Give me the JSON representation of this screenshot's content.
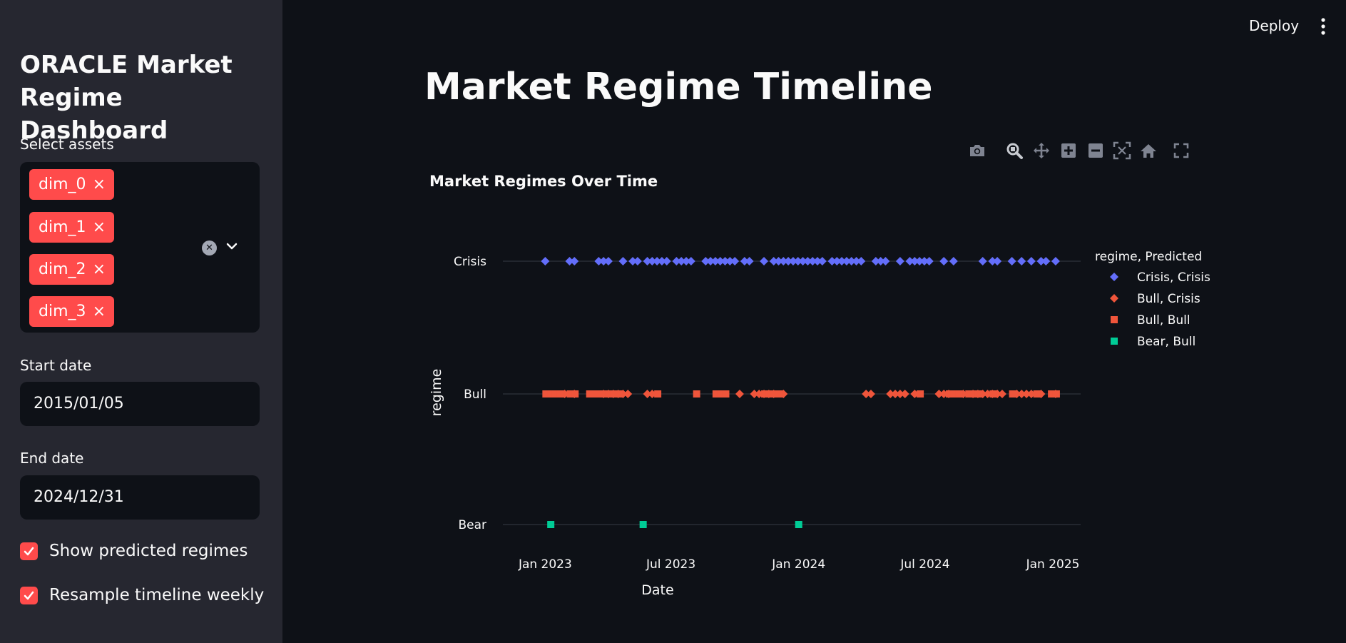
{
  "sidebar": {
    "title": "ORACLE Market Regime Dashboard",
    "assets_label": "Select assets",
    "assets_selected": [
      "dim_0",
      "dim_1",
      "dim_2",
      "dim_3"
    ],
    "tag_remove_glyph": "×",
    "clear_glyph": "✕",
    "start_date_label": "Start date",
    "start_date_value": "2015/01/05",
    "end_date_label": "End date",
    "end_date_value": "2024/12/31",
    "show_predicted_label": "Show predicted regimes",
    "show_predicted_checked": true,
    "resample_label": "Resample timeline weekly",
    "resample_checked": true
  },
  "header": {
    "deploy_label": "Deploy",
    "menu_icon": "kebab-menu-icon"
  },
  "main": {
    "title": "Market Regime Timeline"
  },
  "modebar": {
    "icons": [
      "camera-icon",
      "zoom-icon",
      "pan-icon",
      "zoom-in-icon",
      "zoom-out-icon",
      "autoscale-icon",
      "home-icon",
      "fullscreen-icon"
    ]
  },
  "colors": {
    "accent": "#ff4b4b",
    "crisis_crisis": "#636efa",
    "bull_crisis": "#ef553b",
    "bull_bull": "#ef553b",
    "bear_bull": "#00cc96"
  },
  "chart_data": {
    "type": "scatter",
    "title": "Market Regimes Over Time",
    "xlabel": "Date",
    "ylabel": "regime",
    "x_type": "date",
    "xlim": [
      "2022-11-01",
      "2025-02-10"
    ],
    "x_ticks": [
      "2023-01-01",
      "2023-07-01",
      "2024-01-01",
      "2024-07-01",
      "2025-01-01"
    ],
    "x_tick_labels": [
      "Jan 2023",
      "Jul 2023",
      "Jan 2024",
      "Jul 2024",
      "Jan 2025"
    ],
    "y_categories": [
      "Bear",
      "Bull",
      "Crisis"
    ],
    "legend_title": "regime, Predicted",
    "legend_position": "right",
    "series": [
      {
        "name": "Crisis, Crisis",
        "symbol": "diamond",
        "color": "#636efa",
        "y": "Crisis",
        "x": [
          "2023-01-01",
          "2023-02-05",
          "2023-02-12",
          "2023-03-19",
          "2023-03-26",
          "2023-04-02",
          "2023-04-23",
          "2023-05-07",
          "2023-05-14",
          "2023-05-28",
          "2023-06-04",
          "2023-06-11",
          "2023-06-18",
          "2023-06-25",
          "2023-07-09",
          "2023-07-16",
          "2023-07-23",
          "2023-07-30",
          "2023-08-20",
          "2023-08-27",
          "2023-09-03",
          "2023-09-10",
          "2023-09-17",
          "2023-09-24",
          "2023-10-01",
          "2023-10-15",
          "2023-10-22",
          "2023-11-12",
          "2023-11-26",
          "2023-12-03",
          "2023-12-10",
          "2023-12-17",
          "2023-12-24",
          "2023-12-31",
          "2024-01-07",
          "2024-01-14",
          "2024-01-21",
          "2024-01-28",
          "2024-02-04",
          "2024-02-18",
          "2024-02-25",
          "2024-03-03",
          "2024-03-10",
          "2024-03-17",
          "2024-03-24",
          "2024-03-31",
          "2024-04-21",
          "2024-04-28",
          "2024-05-05",
          "2024-05-26",
          "2024-06-09",
          "2024-06-16",
          "2024-06-23",
          "2024-06-30",
          "2024-07-07",
          "2024-07-28",
          "2024-08-11",
          "2024-09-22",
          "2024-10-06",
          "2024-10-13",
          "2024-11-03",
          "2024-11-17",
          "2024-12-01",
          "2024-12-15",
          "2024-12-22",
          "2025-01-05"
        ]
      },
      {
        "name": "Bull, Crisis",
        "symbol": "diamond",
        "color": "#ef553b",
        "y": "Bull",
        "x": [
          "2023-01-29",
          "2023-02-12",
          "2023-03-26",
          "2023-04-02",
          "2023-04-09",
          "2023-04-16",
          "2023-04-23",
          "2023-04-30",
          "2023-05-28",
          "2023-06-04",
          "2023-10-08",
          "2023-10-29",
          "2023-11-05",
          "2023-11-12",
          "2023-11-19",
          "2023-11-26",
          "2023-12-10",
          "2024-04-07",
          "2024-04-14",
          "2024-05-12",
          "2024-05-19",
          "2024-05-26",
          "2024-06-02",
          "2024-06-16",
          "2024-07-21",
          "2024-07-28",
          "2024-08-04",
          "2024-08-25",
          "2024-09-08",
          "2024-09-15",
          "2024-09-22",
          "2024-09-29",
          "2024-10-06",
          "2024-10-13",
          "2024-10-20",
          "2024-11-10",
          "2024-11-17",
          "2024-11-24",
          "2024-12-01",
          "2024-12-15",
          "2025-01-05"
        ]
      },
      {
        "name": "Bull, Bull",
        "symbol": "square",
        "color": "#ef553b",
        "y": "Bull",
        "x": [
          "2023-01-02",
          "2023-01-09",
          "2023-01-16",
          "2023-01-23",
          "2023-02-06",
          "2023-02-13",
          "2023-03-06",
          "2023-03-13",
          "2023-03-20",
          "2023-03-27",
          "2023-04-03",
          "2023-04-10",
          "2023-04-17",
          "2023-06-12",
          "2023-08-07",
          "2023-09-04",
          "2023-09-11",
          "2023-09-18",
          "2023-11-13",
          "2023-11-20",
          "2023-11-27",
          "2023-12-04",
          "2024-06-24",
          "2024-08-05",
          "2024-08-12",
          "2024-08-19",
          "2024-09-02",
          "2024-09-09",
          "2024-09-16",
          "2024-10-07",
          "2024-11-04",
          "2024-12-09",
          "2024-12-30",
          "2025-01-06"
        ]
      },
      {
        "name": "Bear, Bull",
        "symbol": "square",
        "color": "#00cc96",
        "y": "Bear",
        "x": [
          "2023-01-09",
          "2023-05-22",
          "2024-01-01"
        ]
      }
    ]
  }
}
